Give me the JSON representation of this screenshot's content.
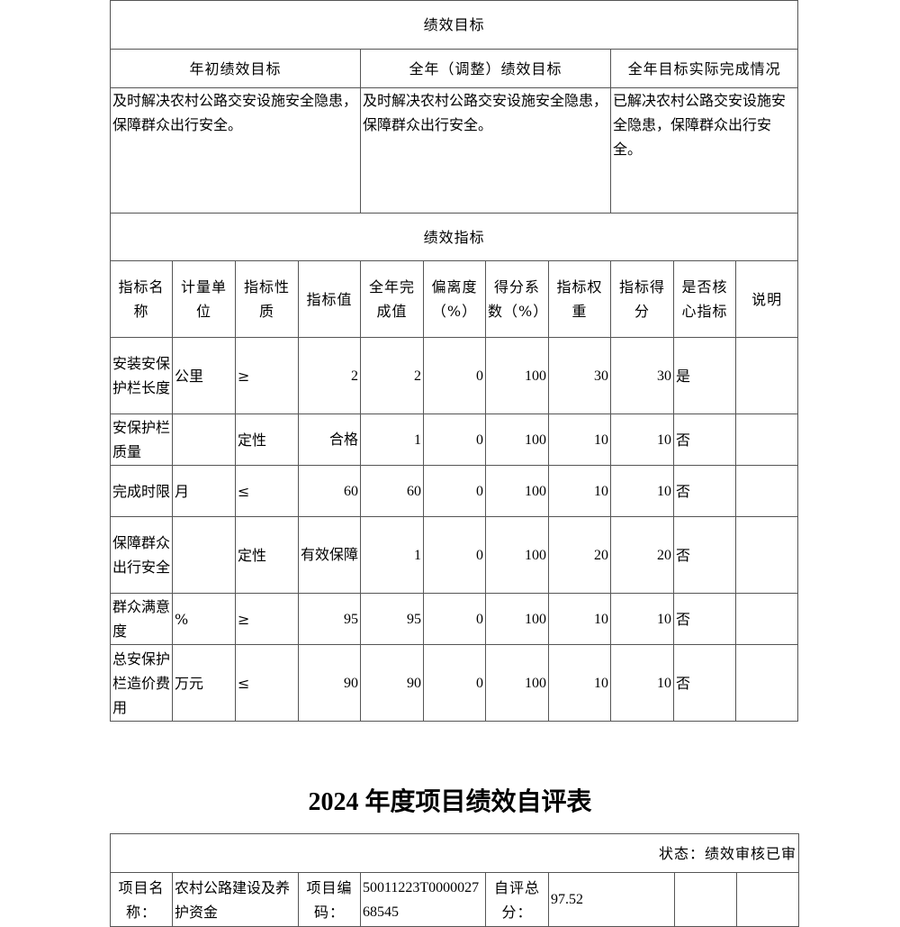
{
  "goals": {
    "title": "绩效目标",
    "headers": [
      "年初绩效目标",
      "全年（调整）绩效目标",
      "全年目标实际完成情况"
    ],
    "values": [
      "及时解决农村公路交安设施安全隐患，保障群众出行安全。",
      "及时解决农村公路交安设施安全隐患，保障群众出行安全。",
      "已解决农村公路交安设施安全隐患，保障群众出行安全。"
    ]
  },
  "indicators": {
    "title": "绩效指标",
    "headers": [
      "指标名称",
      "计量单位",
      "指标性质",
      "指标值",
      "全年完成值",
      "偏离度（%）",
      "得分系数（%）",
      "指标权重",
      "指标得分",
      "是否核心指标",
      "说明"
    ],
    "rows": [
      [
        "安装安保护栏长度",
        "公里",
        "≥",
        "2",
        "2",
        "0",
        "100",
        "30",
        "30",
        "是",
        ""
      ],
      [
        "安保护栏质量",
        "",
        "定性",
        "合格",
        "1",
        "0",
        "100",
        "10",
        "10",
        "否",
        ""
      ],
      [
        "完成时限",
        "月",
        "≤",
        "60",
        "60",
        "0",
        "100",
        "10",
        "10",
        "否",
        ""
      ],
      [
        "保障群众出行安全",
        "",
        "定性",
        "有效保障",
        "1",
        "0",
        "100",
        "20",
        "20",
        "否",
        ""
      ],
      [
        "群众满意度",
        "%",
        "≥",
        "95",
        "95",
        "0",
        "100",
        "10",
        "10",
        "否",
        ""
      ],
      [
        "总安保护栏造价费用",
        "万元",
        "≤",
        "90",
        "90",
        "0",
        "100",
        "10",
        "10",
        "否",
        ""
      ]
    ]
  },
  "form": {
    "title": "2024 年度项目绩效自评表",
    "status": "状态：绩效审核已审",
    "project_name_label": "项目名称：",
    "project_name": "农村公路建设及养护资金",
    "project_code_label": "项目编码：",
    "project_code": "50011223T000002768545",
    "score_label": "自评总分：",
    "score": "97.52"
  }
}
